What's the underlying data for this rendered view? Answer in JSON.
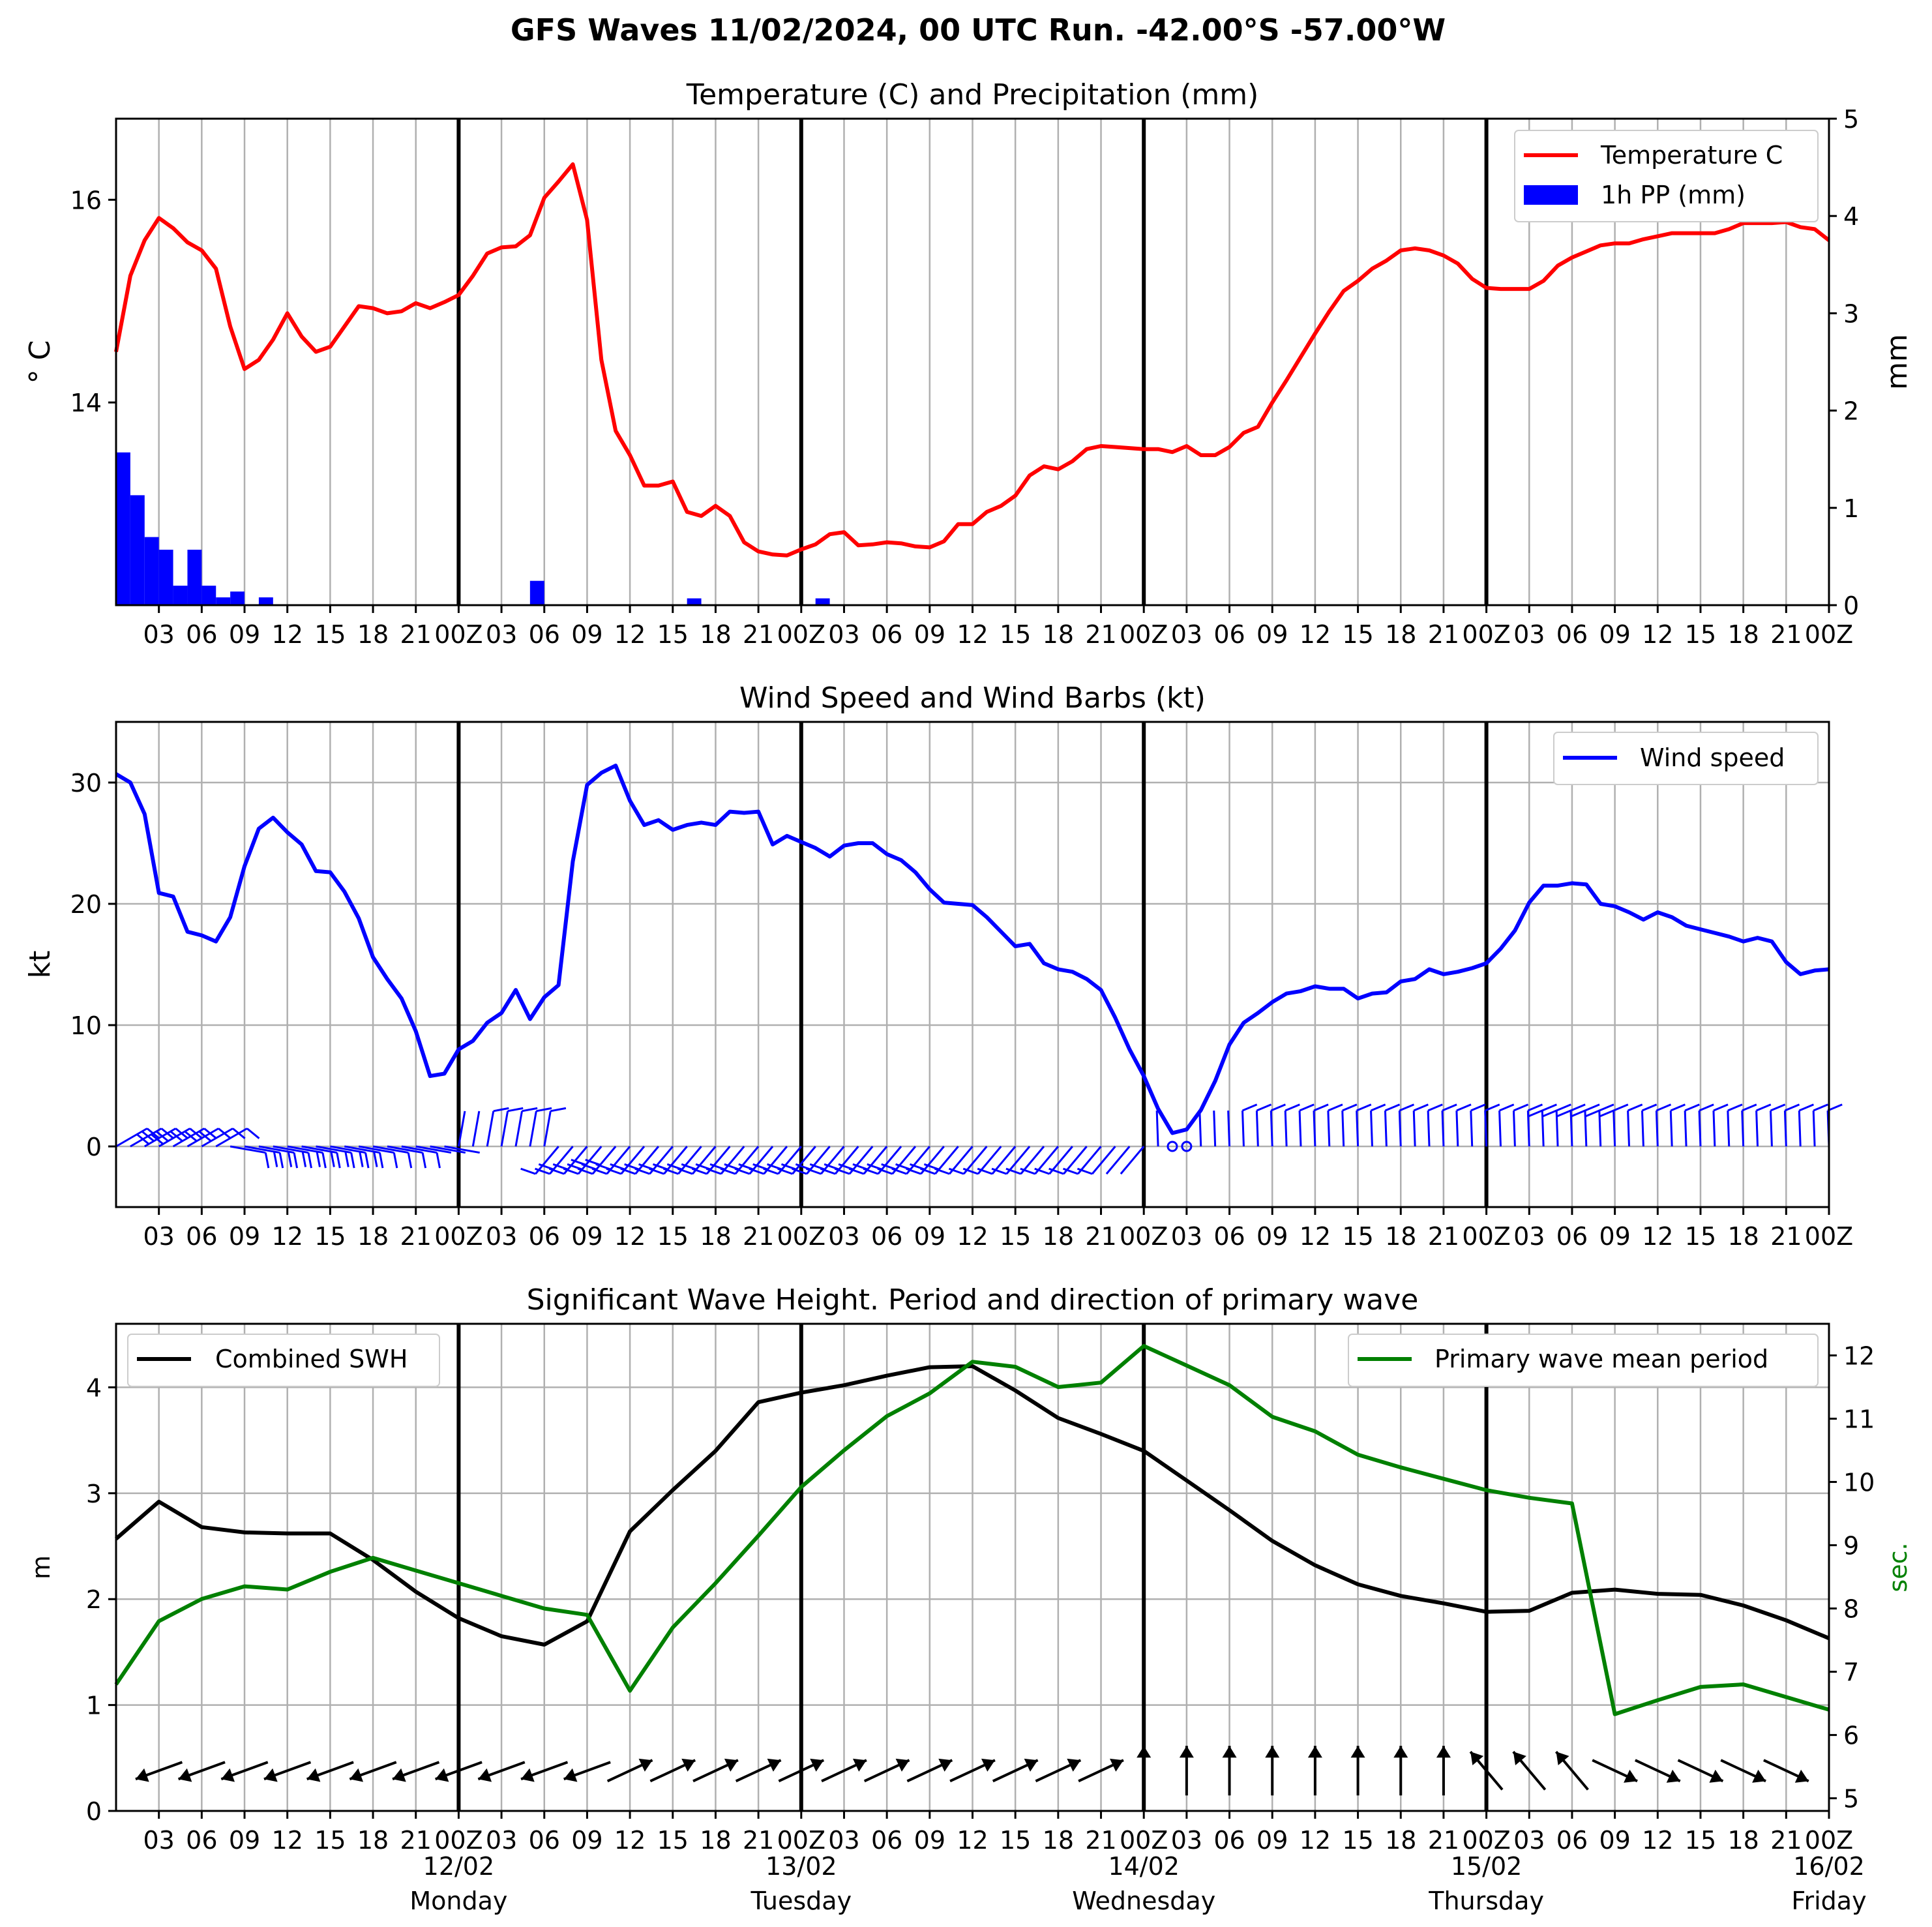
{
  "figure_title": "GFS Waves 11/02/2024, 00 UTC Run. -42.00°S -57.00°W",
  "time_ticks": [
    "03",
    "06",
    "09",
    "12",
    "15",
    "18",
    "21",
    "00Z",
    "03",
    "06",
    "09",
    "12",
    "15",
    "18",
    "21",
    "00Z",
    "03",
    "06",
    "09",
    "12",
    "15",
    "18",
    "21",
    "00Z",
    "03",
    "06",
    "09",
    "12",
    "15",
    "18",
    "21",
    "00Z",
    "03",
    "06",
    "09",
    "12",
    "15",
    "18",
    "21",
    "00Z"
  ],
  "day_labels": [
    {
      "date": "12/02",
      "weekday": "Monday"
    },
    {
      "date": "13/02",
      "weekday": "Tuesday"
    },
    {
      "date": "14/02",
      "weekday": "Wednesday"
    },
    {
      "date": "15/02",
      "weekday": "Thursday"
    },
    {
      "date": "16/02",
      "weekday": "Friday"
    }
  ],
  "colors": {
    "temperature": "#ff0000",
    "precip": "#0000ff",
    "wind": "#0000ff",
    "swh": "#000000",
    "period": "#008000",
    "grid": "#b0b0b0"
  },
  "chart_data": [
    {
      "type": "line",
      "title": "Temperature (C) and Precipitation (mm)",
      "ylabel": "$^\\circ$C",
      "ylabel_display": "° C",
      "y2label": "mm",
      "x_unit": "hours from 11/02 00 UTC",
      "xlim": [
        0,
        120
      ],
      "ylim": [
        12.0,
        16.8
      ],
      "y_ticks": [
        14,
        16
      ],
      "y2lim": [
        0,
        5
      ],
      "y2_ticks": [
        0,
        1,
        2,
        3,
        4,
        5
      ],
      "legend": {
        "position": "upper right",
        "entries": [
          "Temperature C",
          "1h PP (mm)"
        ]
      },
      "series": [
        {
          "name": "Temperature C",
          "color": "#ff0000",
          "x": [
            0,
            1,
            2,
            3,
            4,
            5,
            6,
            7,
            8,
            9,
            10,
            11,
            12,
            13,
            14,
            15,
            16,
            17,
            18,
            19,
            20,
            21,
            22,
            23,
            24,
            25,
            26,
            27,
            28,
            29,
            30,
            31,
            32,
            33,
            34,
            35,
            36,
            37,
            38,
            39,
            40,
            41,
            42,
            43,
            44,
            45,
            46,
            47,
            48,
            49,
            50,
            51,
            52,
            53,
            54,
            55,
            56,
            57,
            58,
            59,
            60,
            61,
            62,
            63,
            64,
            65,
            66,
            67,
            68,
            69,
            70,
            71,
            72,
            73,
            74,
            75,
            76,
            77,
            78,
            79,
            80,
            81,
            82,
            83,
            84,
            85,
            86,
            87,
            88,
            89,
            90,
            91,
            92,
            93,
            94,
            95,
            96,
            97,
            98,
            99,
            100,
            101,
            102,
            103,
            104,
            105,
            106,
            107,
            108,
            109,
            110,
            111,
            112,
            113,
            114,
            115,
            116,
            117,
            118,
            119,
            120
          ],
          "values": [
            14.5,
            15.25,
            15.6,
            15.82,
            15.72,
            15.58,
            15.5,
            15.32,
            14.75,
            14.33,
            14.42,
            14.62,
            14.88,
            14.65,
            14.5,
            14.55,
            14.75,
            14.95,
            14.93,
            14.88,
            14.9,
            14.98,
            14.93,
            14.99,
            15.06,
            15.25,
            15.47,
            15.53,
            15.54,
            15.65,
            16.02,
            16.18,
            16.35,
            15.8,
            14.42,
            13.72,
            13.48,
            13.18,
            13.18,
            13.22,
            12.92,
            12.88,
            12.98,
            12.88,
            12.62,
            12.53,
            12.5,
            12.49,
            12.55,
            12.6,
            12.7,
            12.72,
            12.59,
            12.6,
            12.62,
            12.61,
            12.58,
            12.57,
            12.63,
            12.8,
            12.8,
            12.92,
            12.98,
            13.08,
            13.28,
            13.37,
            13.34,
            13.42,
            13.54,
            13.57,
            13.56,
            13.55,
            13.54,
            13.54,
            13.51,
            13.57,
            13.48,
            13.48,
            13.56,
            13.7,
            13.76,
            14.0,
            14.22,
            14.45,
            14.68,
            14.9,
            15.1,
            15.2,
            15.32,
            15.4,
            15.5,
            15.52,
            15.5,
            15.45,
            15.37,
            15.22,
            15.13,
            15.12,
            15.12,
            15.12,
            15.2,
            15.35,
            15.43,
            15.49,
            15.55,
            15.57,
            15.57,
            15.61,
            15.64,
            15.67,
            15.67,
            15.67,
            15.67,
            15.71,
            15.77,
            15.77,
            15.77,
            15.78,
            15.73,
            15.71,
            15.6
          ]
        },
        {
          "name": "1h PP (mm)",
          "color": "#0000ff",
          "axis": "right",
          "x": [
            0,
            1,
            2,
            3,
            4,
            5,
            6,
            7,
            8,
            9,
            10,
            11,
            12,
            13,
            14,
            15,
            16,
            17,
            18,
            19,
            20,
            21,
            22,
            23,
            24,
            25,
            26,
            27,
            28,
            29,
            30,
            31,
            32,
            33,
            34,
            35,
            36,
            37,
            38,
            39,
            40,
            41,
            42,
            43,
            44,
            45,
            46,
            47,
            48,
            49,
            50,
            51,
            52,
            53,
            54,
            55,
            56,
            57,
            58,
            59,
            60,
            61,
            62,
            63,
            64,
            65,
            66,
            67,
            68,
            69,
            70,
            71,
            72,
            73,
            74,
            75,
            76,
            77,
            78,
            79,
            80,
            81,
            82,
            83,
            84,
            85,
            86,
            87,
            88,
            89,
            90,
            91,
            92,
            93,
            94,
            95,
            96,
            97,
            98,
            99,
            100,
            101,
            102,
            103,
            104,
            105,
            106,
            107,
            108,
            109,
            110,
            111,
            112,
            113,
            114,
            115,
            116,
            117,
            118,
            119
          ],
          "values": [
            1.57,
            1.13,
            0.7,
            0.57,
            0.2,
            0.57,
            0.2,
            0.08,
            0.14,
            0,
            0.08,
            0,
            0,
            0,
            0,
            0,
            0,
            0,
            0,
            0,
            0,
            0,
            0,
            0,
            0,
            0,
            0,
            0,
            0,
            0.25,
            0,
            0,
            0,
            0,
            0,
            0,
            0,
            0,
            0,
            0,
            0.07,
            0,
            0,
            0,
            0,
            0,
            0,
            0,
            0,
            0.07,
            0,
            0,
            0,
            0,
            0,
            0,
            0,
            0,
            0,
            0,
            0,
            0,
            0,
            0,
            0,
            0,
            0,
            0,
            0,
            0,
            0,
            0,
            0,
            0,
            0,
            0,
            0,
            0,
            0,
            0,
            0,
            0,
            0,
            0,
            0,
            0,
            0,
            0,
            0,
            0,
            0,
            0,
            0,
            0,
            0,
            0,
            0,
            0,
            0,
            0,
            0,
            0,
            0,
            0,
            0,
            0,
            0,
            0,
            0,
            0,
            0,
            0,
            0,
            0,
            0,
            0,
            0,
            0,
            0,
            0
          ]
        }
      ]
    },
    {
      "type": "line",
      "title": "Wind Speed and Wind Barbs (kt)",
      "ylabel": "kt",
      "x_unit": "hours from 11/02 00 UTC",
      "xlim": [
        0,
        120
      ],
      "ylim": [
        -5,
        35
      ],
      "y_ticks": [
        0,
        10,
        20,
        30
      ],
      "legend": {
        "position": "upper right",
        "entries": [
          "Wind speed"
        ]
      },
      "series": [
        {
          "name": "Wind speed",
          "color": "#0000ff",
          "x": [
            0,
            1,
            2,
            3,
            4,
            5,
            6,
            7,
            8,
            9,
            10,
            11,
            12,
            13,
            14,
            15,
            16,
            17,
            18,
            19,
            20,
            21,
            22,
            23,
            24,
            25,
            26,
            27,
            28,
            29,
            30,
            31,
            32,
            33,
            34,
            35,
            36,
            37,
            38,
            39,
            40,
            41,
            42,
            43,
            44,
            45,
            46,
            47,
            48,
            49,
            50,
            51,
            52,
            53,
            54,
            55,
            56,
            57,
            58,
            59,
            60,
            61,
            62,
            63,
            64,
            65,
            66,
            67,
            68,
            69,
            70,
            71,
            72,
            73,
            74,
            75,
            76,
            77,
            78,
            79,
            80,
            81,
            82,
            83,
            84,
            85,
            86,
            87,
            88,
            89,
            90,
            91,
            92,
            93,
            94,
            95,
            96,
            97,
            98,
            99,
            100,
            101,
            102,
            103,
            104,
            105,
            106,
            107,
            108,
            109,
            110,
            111,
            112,
            113,
            114,
            115,
            116,
            117,
            118,
            119,
            120
          ],
          "values": [
            30.7,
            30.0,
            27.4,
            20.9,
            20.6,
            17.7,
            17.4,
            16.9,
            18.9,
            23.1,
            26.2,
            27.1,
            25.9,
            24.9,
            22.7,
            22.6,
            21.0,
            18.8,
            15.6,
            13.8,
            12.2,
            9.5,
            5.8,
            6.0,
            8.0,
            8.7,
            10.2,
            11.0,
            12.9,
            10.5,
            12.3,
            13.3,
            23.5,
            29.8,
            30.8,
            31.4,
            28.5,
            26.5,
            26.9,
            26.1,
            26.5,
            26.7,
            26.5,
            27.6,
            27.5,
            27.6,
            24.9,
            25.6,
            25.1,
            24.6,
            23.9,
            24.8,
            25.0,
            25.0,
            24.1,
            23.6,
            22.6,
            21.2,
            20.1,
            20.0,
            19.9,
            18.9,
            17.7,
            16.5,
            16.7,
            15.1,
            14.6,
            14.4,
            13.8,
            12.9,
            10.6,
            8.0,
            5.8,
            3.1,
            1.1,
            1.4,
            3.0,
            5.4,
            8.4,
            10.2,
            11.0,
            11.9,
            12.6,
            12.8,
            13.2,
            13.0,
            13.0,
            12.2,
            12.6,
            12.7,
            13.6,
            13.8,
            14.6,
            14.2,
            14.4,
            14.7,
            15.1,
            16.3,
            17.8,
            20.1,
            21.5,
            21.5,
            21.7,
            21.6,
            20.0,
            19.8,
            19.3,
            18.7,
            19.3,
            18.9,
            18.2,
            17.9,
            17.6,
            17.3,
            16.9,
            17.2,
            16.9,
            15.2,
            14.2,
            14.5,
            14.6
          ]
        }
      ]
    },
    {
      "type": "line",
      "title": "Significant Wave Height. Period and direction of primary wave",
      "ylabel": "m",
      "y2label": "sec.",
      "x_unit": "hours from 11/02 00 UTC",
      "xlim": [
        0,
        120
      ],
      "ylim": [
        0,
        4.6
      ],
      "y_ticks": [
        0,
        1,
        2,
        3,
        4
      ],
      "y2lim": [
        4.8,
        12.5
      ],
      "y2_ticks": [
        5,
        6,
        7,
        8,
        9,
        10,
        11,
        12
      ],
      "legend": {
        "position": "upper left / upper right",
        "entries": [
          "Combined SWH",
          "Primary wave mean period"
        ]
      },
      "series": [
        {
          "name": "Combined SWH",
          "color": "#000000",
          "x": [
            0,
            3,
            6,
            9,
            12,
            15,
            18,
            21,
            24,
            27,
            30,
            33,
            36,
            39,
            42,
            45,
            48,
            51,
            54,
            57,
            60,
            63,
            66,
            69,
            72,
            75,
            78,
            81,
            84,
            87,
            90,
            93,
            96,
            99,
            102,
            105,
            108,
            111,
            114,
            117,
            120
          ],
          "values": [
            2.57,
            2.92,
            2.68,
            2.63,
            2.62,
            2.62,
            2.37,
            2.07,
            1.82,
            1.65,
            1.57,
            1.79,
            2.64,
            3.03,
            3.4,
            3.86,
            3.95,
            4.02,
            4.11,
            4.19,
            4.2,
            3.97,
            3.71,
            3.56,
            3.4,
            3.12,
            2.84,
            2.55,
            2.32,
            2.14,
            2.03,
            1.96,
            1.88,
            1.89,
            2.06,
            2.09,
            2.05,
            2.04,
            1.94,
            1.8,
            1.63
          ]
        },
        {
          "name": "Primary wave mean period",
          "color": "#008000",
          "axis": "right",
          "x": [
            0,
            3,
            6,
            9,
            12,
            15,
            18,
            21,
            24,
            27,
            30,
            33,
            36,
            39,
            42,
            45,
            48,
            51,
            54,
            57,
            60,
            63,
            66,
            69,
            72,
            75,
            78,
            81,
            84,
            87,
            90,
            93,
            96,
            99,
            102,
            105,
            108,
            111,
            114,
            117,
            120
          ],
          "values": [
            6.8,
            7.8,
            8.15,
            8.35,
            8.3,
            8.58,
            8.8,
            8.6,
            8.4,
            8.2,
            8.0,
            7.9,
            6.7,
            7.7,
            8.4,
            9.15,
            9.92,
            10.5,
            11.04,
            11.4,
            11.9,
            11.82,
            11.5,
            11.57,
            12.15,
            11.84,
            11.53,
            11.03,
            10.8,
            10.43,
            10.23,
            10.05,
            9.87,
            9.75,
            9.66,
            6.33,
            6.55,
            6.76,
            6.8,
            6.6,
            6.4
          ]
        }
      ]
    }
  ]
}
